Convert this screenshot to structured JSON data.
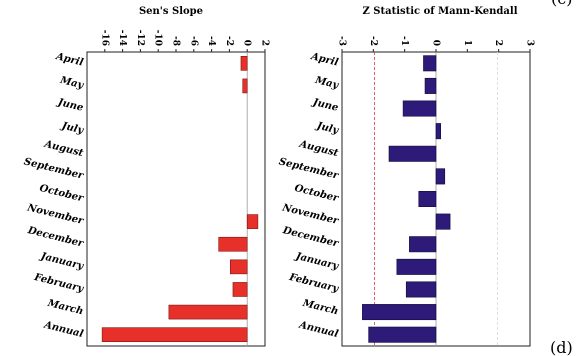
{
  "figure": {
    "panel_label": "(d)",
    "panel_label_top": "(c)"
  },
  "chart_data": [
    {
      "type": "bar",
      "orientation": "horizontal",
      "title": "Sen's Slope",
      "categories": [
        "April",
        "May",
        "June",
        "July",
        "August",
        "September",
        "October",
        "November",
        "December",
        "January",
        "February",
        "March",
        "Annual"
      ],
      "values": [
        -0.7,
        -0.5,
        0,
        0,
        0,
        0,
        0,
        1.2,
        -3.2,
        -1.9,
        -1.6,
        -8.8,
        -16.3
      ],
      "xlim": [
        -18,
        2
      ],
      "xticks": [
        -16,
        -14,
        -12,
        -10,
        -8,
        -6,
        -4,
        -2,
        0,
        2
      ],
      "tick_labels": [
        "-16",
        "-14",
        "-12",
        "-10",
        "-8",
        "-6",
        "-4",
        "-2",
        "0",
        "2"
      ],
      "zero_line": 0,
      "grid": false,
      "colors": {
        "bar": "#e8302a",
        "bar_edge": "#7a1410",
        "zero_line": "#9a9a9a"
      }
    },
    {
      "type": "bar",
      "orientation": "horizontal",
      "title": "Z Statistic of Mann-Kendall",
      "categories": [
        "April",
        "May",
        "June",
        "July",
        "August",
        "September",
        "October",
        "November",
        "December",
        "January",
        "February",
        "March",
        "Annual"
      ],
      "values": [
        -0.4,
        -0.35,
        -1.05,
        0.15,
        -1.5,
        0.28,
        -0.55,
        0.45,
        -0.85,
        -1.25,
        -0.95,
        -2.35,
        -2.15
      ],
      "xlim": [
        -3,
        3
      ],
      "xticks": [
        -3,
        -2,
        -1,
        0,
        1,
        2,
        3
      ],
      "tick_labels": [
        "-3",
        "-2",
        "-1",
        "0",
        "1",
        "2",
        "3"
      ],
      "reference_lines": [
        -1.96,
        0,
        1.96
      ],
      "grid": false,
      "colors": {
        "bar": "#2e1a78",
        "bar_edge": "#120a3a",
        "zero_line": "#9a9a9a",
        "significance_line_left": "#e03a3a",
        "significance_line_right": "#d9d9d9"
      }
    }
  ]
}
